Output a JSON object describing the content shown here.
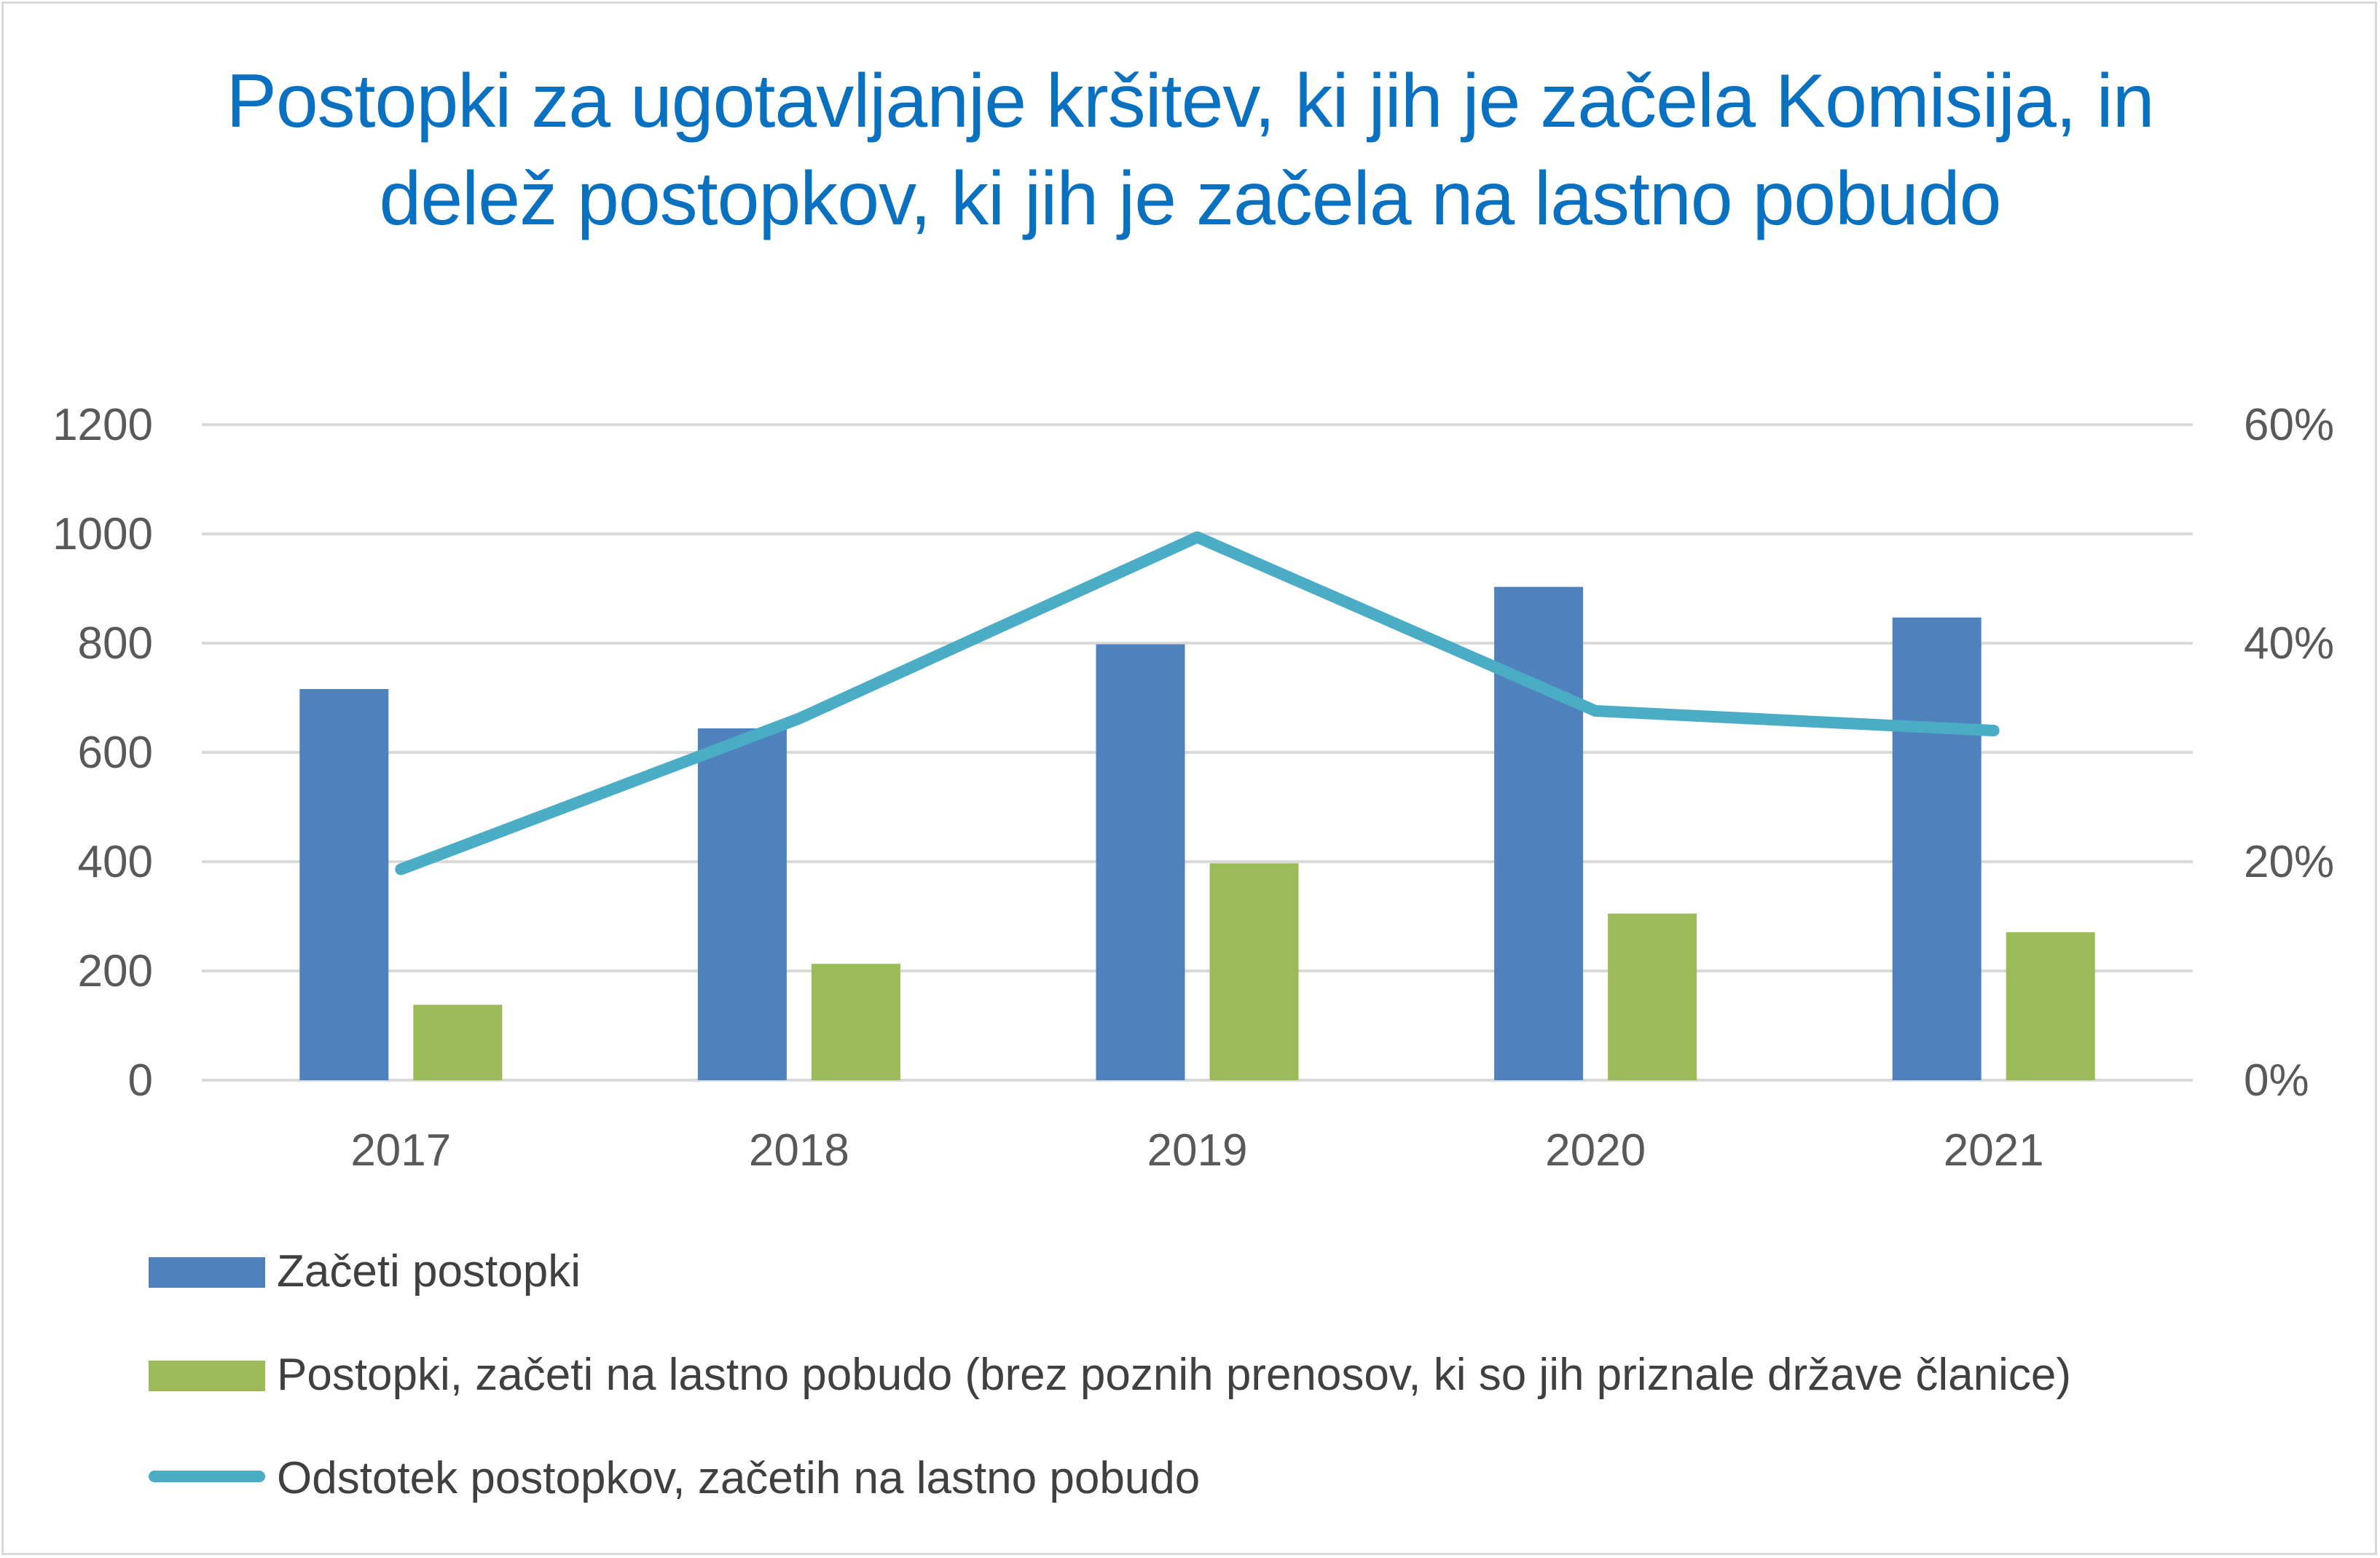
{
  "chart_data": {
    "type": "bar",
    "title": "Postopki za ugotavljanje kršitev, ki jih je začela Komisija, in delež postopkov, ki jih je začela na lastno pobudo",
    "categories": [
      "2017",
      "2018",
      "2019",
      "2020",
      "2021"
    ],
    "series": [
      {
        "name": "Začeti postopki",
        "type": "bar",
        "axis": "left",
        "color": "#4f81bd",
        "values": [
          716,
          644,
          798,
          903,
          847
        ]
      },
      {
        "name": "Postopki, začeti na lastno pobudo (brez poznih prenosov, ki so jih priznale države članice)",
        "type": "bar",
        "axis": "left",
        "color": "#9bbb59",
        "values": [
          138,
          213,
          397,
          305,
          271
        ]
      },
      {
        "name": "Odstotek postopkov, začetih na lastno pobudo",
        "type": "line",
        "axis": "right",
        "color": "#4bacc6",
        "values": [
          19.3,
          33.1,
          49.7,
          33.8,
          32.0
        ]
      }
    ],
    "ylim": [
      0,
      1200
    ],
    "yticks": [
      "0",
      "200",
      "400",
      "600",
      "800",
      "1000",
      "1200"
    ],
    "y2lim": [
      0,
      60
    ],
    "y2ticks": [
      "0%",
      "20%",
      "40%",
      "60%"
    ],
    "grid": true,
    "legend_position": "bottom"
  }
}
